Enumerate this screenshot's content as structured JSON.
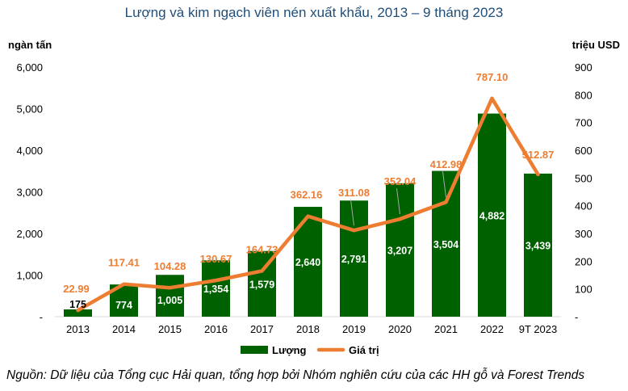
{
  "chart_data": {
    "type": "bar",
    "title": "Lượng và kim ngạch viên nén xuất khẩu, 2013 – 9 tháng 2023",
    "ylabel_left": "ngàn tấn",
    "ylabel_right": "triệu USD",
    "categories": [
      "2013",
      "2014",
      "2015",
      "2016",
      "2017",
      "2018",
      "2019",
      "2020",
      "2021",
      "2022",
      "9T 2023"
    ],
    "ylim_left": [
      0,
      6000
    ],
    "ylim_right": [
      0,
      900
    ],
    "left_ticks": [
      "-",
      "1,000",
      "2,000",
      "3,000",
      "4,000",
      "5,000",
      "6,000"
    ],
    "right_ticks": [
      "-",
      "100",
      "200",
      "300",
      "400",
      "500",
      "600",
      "700",
      "800",
      "900"
    ],
    "series": [
      {
        "name": "Lượng",
        "type": "bar",
        "axis": "left",
        "color": "#006100",
        "values": [
          175,
          774,
          1005,
          1354,
          1579,
          2640,
          2791,
          3207,
          3504,
          4882,
          3439
        ],
        "labels": [
          "175",
          "774",
          "1,005",
          "1,354",
          "1,579",
          "2,640",
          "2,791",
          "3,207",
          "3,504",
          "4,882",
          "3,439"
        ]
      },
      {
        "name": "Giá trị",
        "type": "line",
        "axis": "right",
        "color": "#ed7d31",
        "values": [
          22.99,
          117.41,
          104.28,
          130.67,
          164.73,
          362.16,
          311.08,
          352.04,
          412.98,
          787.1,
          512.87
        ],
        "labels": [
          "22.99",
          "117.41",
          "104.28",
          "130.67",
          "164.73",
          "362.16",
          "311.08",
          "352.04",
          "412.98",
          "787.10",
          "512.87"
        ]
      }
    ],
    "grid": false,
    "legend_position": "bottom"
  },
  "source": "Nguồn: Dữ liệu của Tổng cục Hải quan, tổng hợp bởi Nhóm nghiên cứu của các HH gỗ và Forest Trends"
}
